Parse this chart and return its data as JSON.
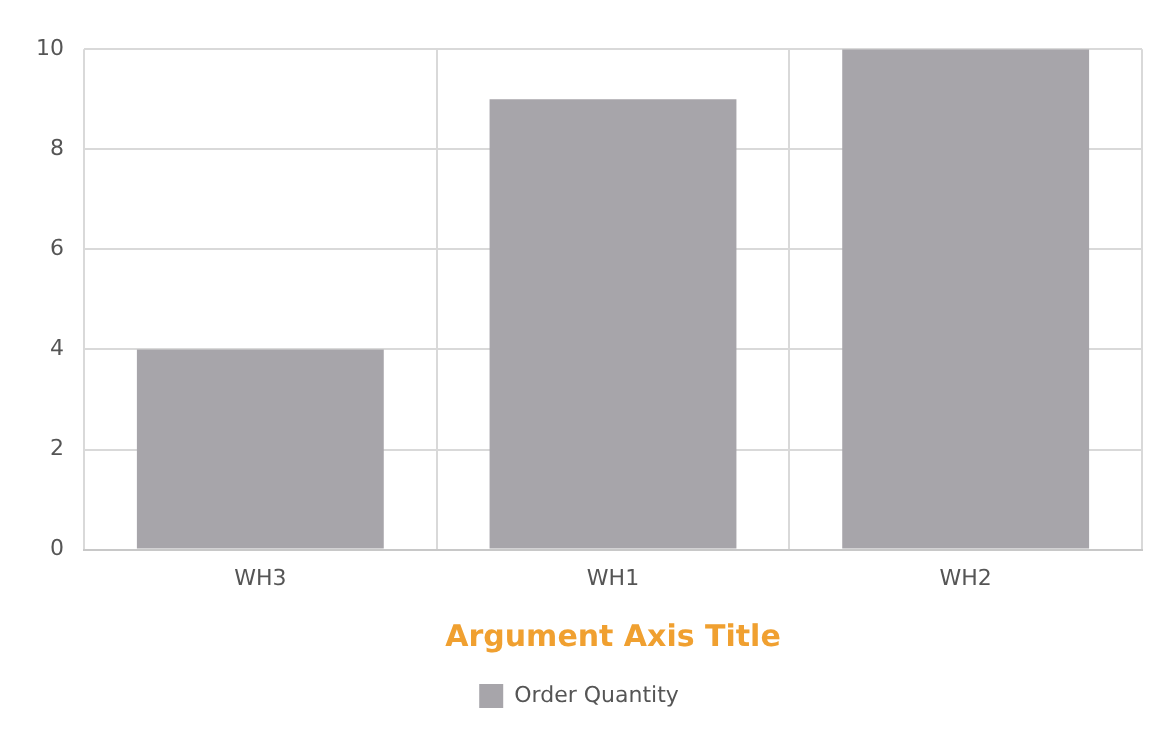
{
  "chart_data": {
    "type": "bar",
    "xlabel": "Argument Axis Title",
    "categories": [
      "WH3",
      "WH1",
      "WH2"
    ],
    "series": [
      {
        "name": "Order Quantity",
        "color": "#a7a5aa",
        "values": [
          4,
          9,
          10
        ]
      }
    ],
    "ylim": [
      0,
      10
    ],
    "yticks": [
      0,
      2,
      4,
      6,
      8,
      10
    ],
    "grid": true,
    "legend": "bottom"
  }
}
